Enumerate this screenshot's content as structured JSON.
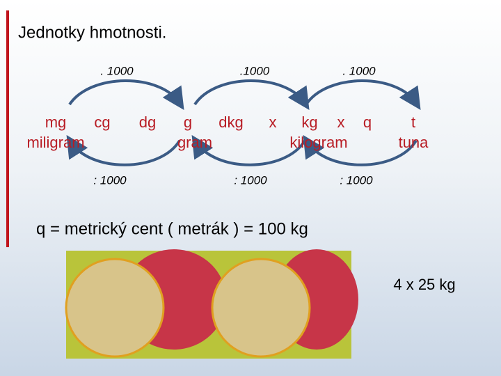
{
  "title": "Jednotky hmotnosti.",
  "multipliers": [
    ". 1000",
    ".1000",
    ". 1000"
  ],
  "units": [
    "mg",
    "cg",
    "dg",
    "g",
    "dkg",
    "x",
    "kg",
    "x",
    "q",
    "t"
  ],
  "unit_names": [
    "miligram",
    "gram",
    "kilogram",
    "tuna"
  ],
  "divisors": [
    ": 1000",
    ": 1000",
    ": 1000"
  ],
  "note": "q = metrický cent ( metrák ) = 100 kg",
  "image_caption": "4 x 25 kg"
}
